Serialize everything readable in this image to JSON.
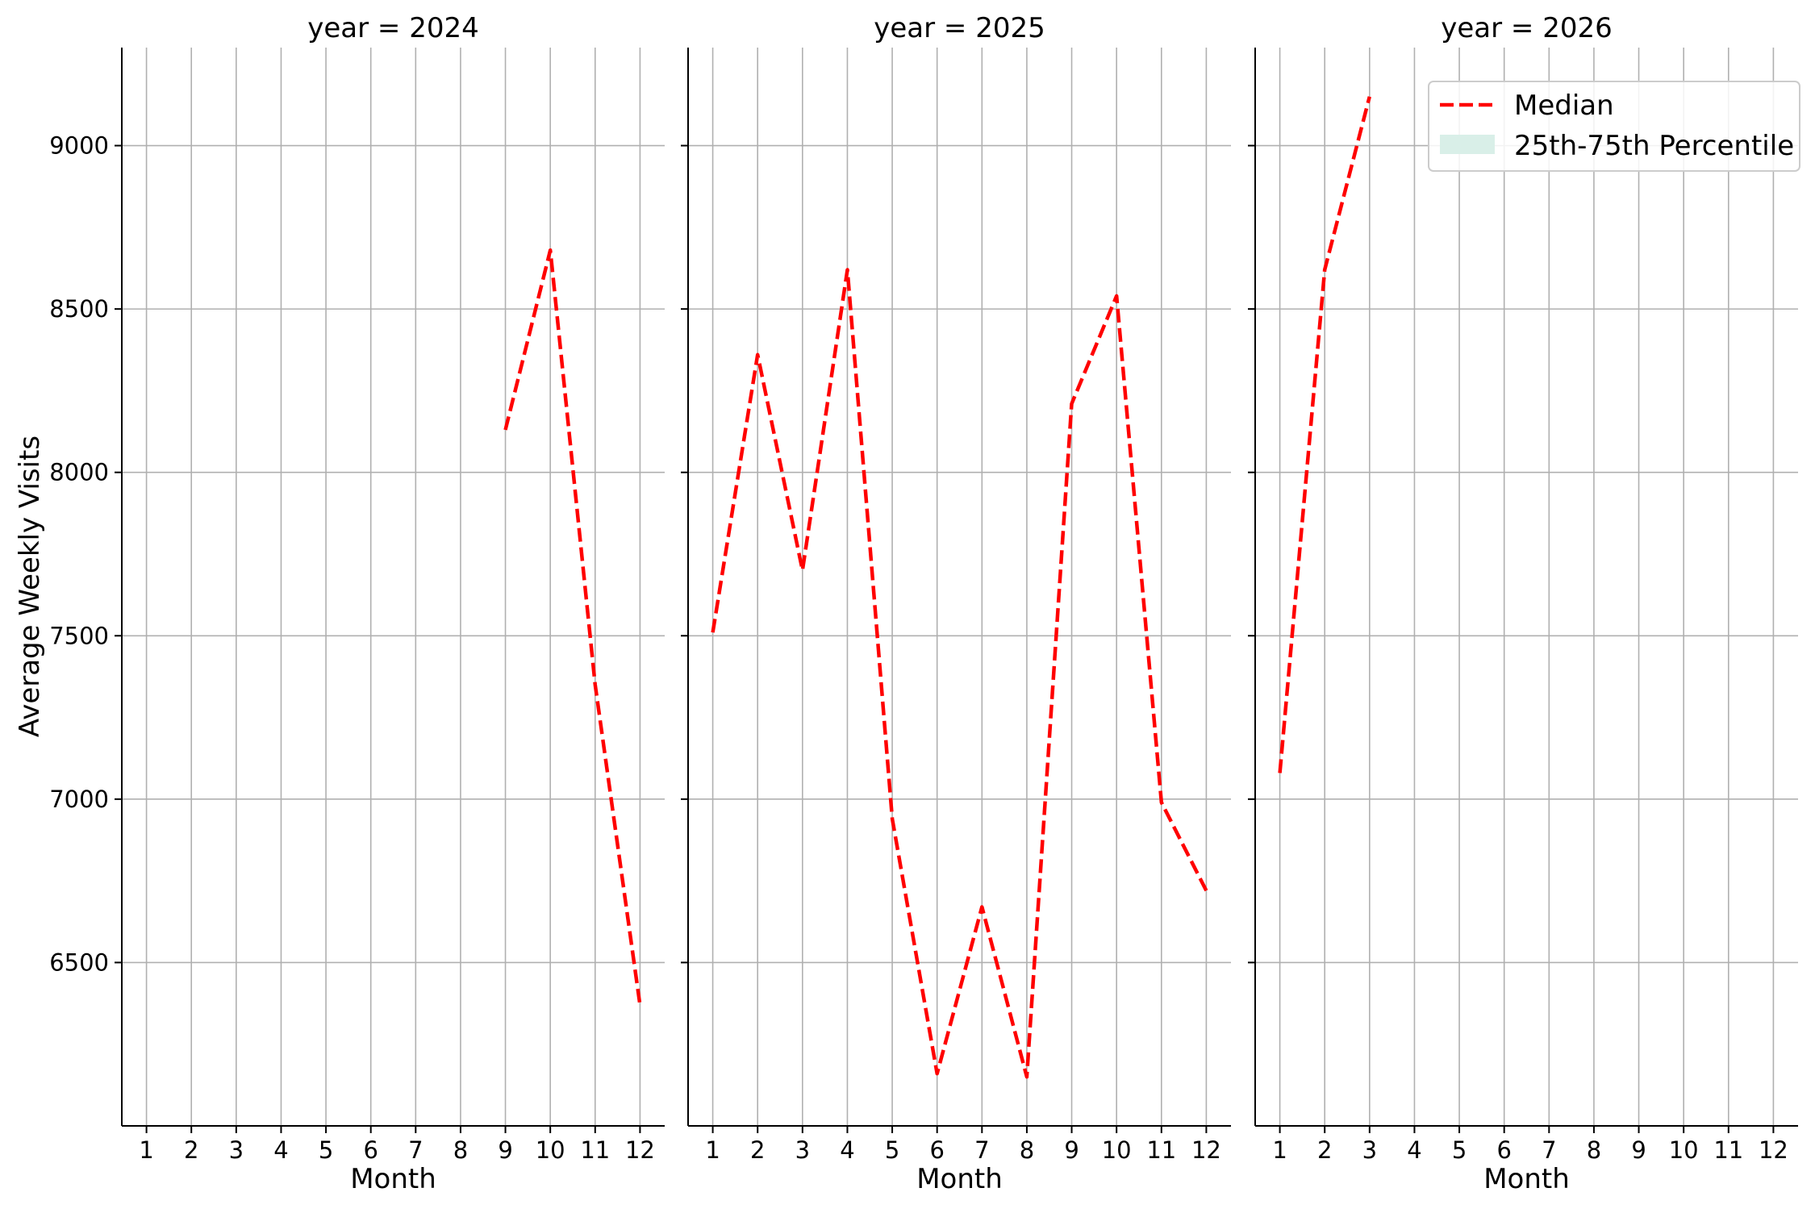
{
  "chart_data": {
    "type": "line",
    "ylabel": "Average Weekly Visits",
    "xlabel": "Month",
    "xlim": [
      0.45,
      12.55
    ],
    "ylim": [
      6000,
      9300
    ],
    "x_ticks": [
      1,
      2,
      3,
      4,
      5,
      6,
      7,
      8,
      9,
      10,
      11,
      12
    ],
    "y_ticks": [
      6500,
      7000,
      7500,
      8000,
      8500,
      9000
    ],
    "grid": true,
    "legend": {
      "placement": "top-right",
      "entries": [
        {
          "label": "Median",
          "color": "#ff0000",
          "style": "dashed-line"
        },
        {
          "label": "25th-75th Percentile",
          "color": "#d9efe8",
          "style": "patch"
        }
      ]
    },
    "panels": [
      {
        "title": "year = 2024",
        "series": [
          {
            "name": "Median",
            "x": [
              9,
              10,
              11,
              12
            ],
            "y": [
              8130,
              8680,
              7350,
              6370
            ]
          }
        ]
      },
      {
        "title": "year = 2025",
        "series": [
          {
            "name": "Median",
            "x": [
              1,
              2,
              3,
              4,
              5,
              6,
              7,
              8,
              9,
              10,
              11,
              12
            ],
            "y": [
              7510,
              8360,
              7700,
              8620,
              6940,
              6160,
              6670,
              6150,
              8210,
              8540,
              6990,
              6720
            ]
          }
        ]
      },
      {
        "title": "year = 2026",
        "series": [
          {
            "name": "Median",
            "x": [
              1,
              2,
              3
            ],
            "y": [
              7080,
              8620,
              9150
            ]
          }
        ]
      }
    ]
  },
  "colors": {
    "median": "#ff0000",
    "percentile_band": "#d9efe8",
    "grid": "#b0b0b0",
    "axis": "#000000"
  }
}
